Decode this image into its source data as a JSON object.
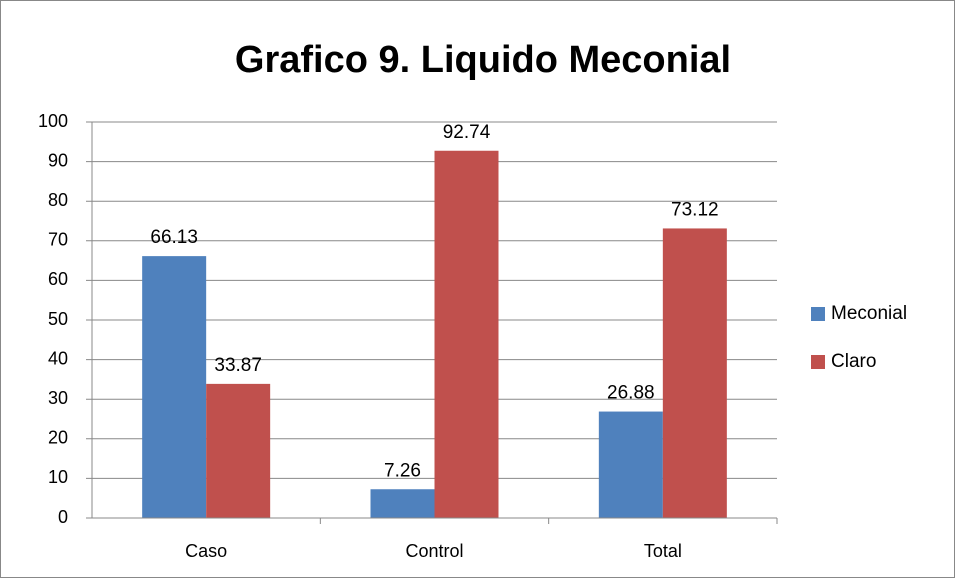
{
  "chart_data": {
    "type": "bar",
    "title": "Grafico 9. Liquido Meconial",
    "categories": [
      "Caso",
      "Control",
      "Total"
    ],
    "series": [
      {
        "name": "Meconial",
        "color": "#4f81bd",
        "values": [
          66.13,
          7.26,
          26.88
        ]
      },
      {
        "name": "Claro",
        "color": "#c0504d",
        "values": [
          33.87,
          92.74,
          73.12
        ]
      }
    ],
    "ylim": [
      0,
      100
    ],
    "yticks": [
      0,
      10,
      20,
      30,
      40,
      50,
      60,
      70,
      80,
      90,
      100
    ],
    "grid": true,
    "legend": "right"
  }
}
